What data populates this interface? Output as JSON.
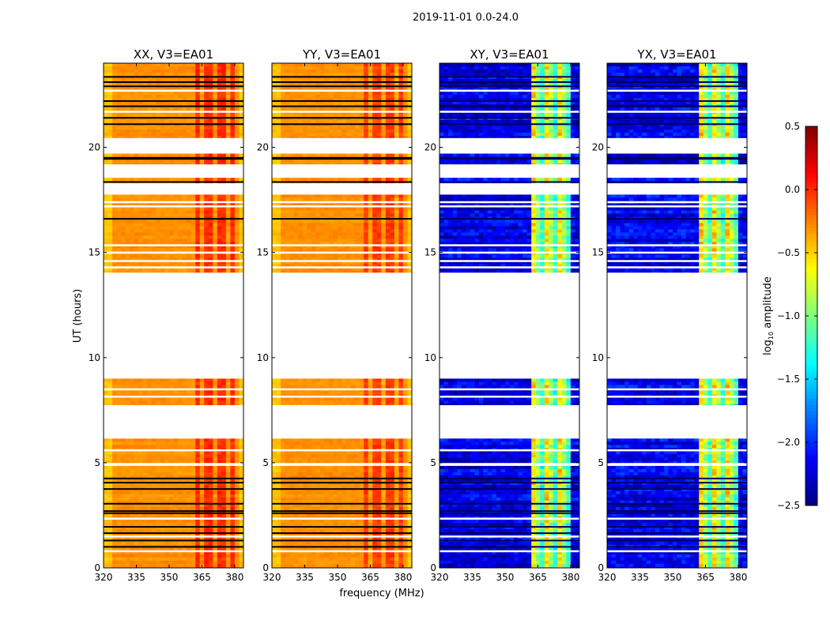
{
  "chart_data": {
    "type": "heatmap",
    "title": "2019-11-01 0.0-24.0",
    "xlabel": "frequency (MHz)",
    "ylabel": "UT (hours)",
    "xlim": [
      320,
      384
    ],
    "ylim": [
      0,
      24
    ],
    "xticks": [
      320,
      335,
      350,
      365,
      380
    ],
    "yticks": [
      0,
      5,
      10,
      15,
      20
    ],
    "panels": [
      {
        "title": "XX, V3=EA01",
        "kind": "parallel",
        "base": -0.3,
        "band_value": 0.0
      },
      {
        "title": "YY, V3=EA01",
        "kind": "parallel",
        "base": -0.3,
        "band_value": -0.05
      },
      {
        "title": "XY, V3=EA01",
        "kind": "cross",
        "base": -2.2,
        "band_value": -0.9
      },
      {
        "title": "YX, V3=EA01",
        "kind": "cross",
        "base": -2.2,
        "band_value": -0.9
      }
    ],
    "rfi_band_mhz": [
      362,
      380
    ],
    "data_segments_hours": [
      [
        0.0,
        4.85
      ],
      [
        5.0,
        6.15
      ],
      [
        7.75,
        9.0
      ],
      [
        14.05,
        17.75
      ],
      [
        18.3,
        18.55
      ],
      [
        19.2,
        19.7
      ],
      [
        20.45,
        24.0
      ]
    ],
    "flagged_lines_hours": [
      23.35,
      23.1,
      22.9,
      22.2,
      21.95,
      21.4,
      21.1,
      19.5,
      19.45,
      18.35,
      16.6,
      4.25,
      4.05,
      3.75,
      3.05,
      2.7,
      2.6,
      1.95,
      1.65,
      1.3,
      1.0
    ],
    "gap_lines_hours": [
      22.7,
      21.7,
      17.4,
      17.2,
      15.35,
      15.0,
      14.6,
      14.3,
      8.5,
      8.15,
      5.6,
      2.35,
      1.5,
      0.8
    ],
    "colorbar": {
      "label": "log10 amplitude",
      "label_main": "log",
      "label_sub": "10",
      "label_rest": " amplitude",
      "range": [
        -2.5,
        0.5
      ],
      "ticks": [
        -2.5,
        -2.0,
        -1.5,
        -1.0,
        -0.5,
        0.0,
        0.5
      ],
      "tick_labels": [
        "−2.5",
        "−2.0",
        "−1.5",
        "−1.0",
        "−0.5",
        "0.0",
        "0.5"
      ],
      "colormap": "jet"
    }
  }
}
